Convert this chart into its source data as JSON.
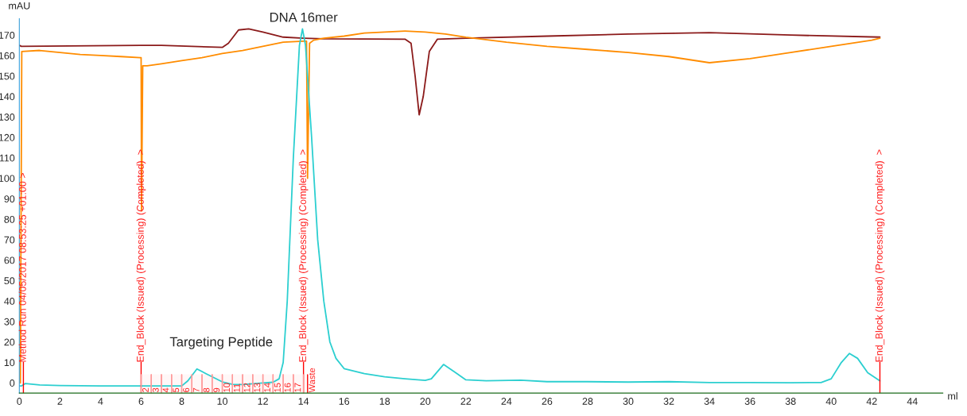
{
  "chart_data": {
    "type": "line",
    "xlabel": "ml",
    "ylabel": "mAU",
    "xlim": [
      0,
      45.5
    ],
    "ylim": [
      -5,
      178
    ],
    "xticks": [
      0,
      2,
      4,
      6,
      8,
      10,
      12,
      14,
      16,
      18,
      20,
      22,
      24,
      26,
      28,
      30,
      32,
      34,
      36,
      38,
      40,
      42,
      44
    ],
    "yticks": [
      0,
      10,
      20,
      30,
      40,
      50,
      60,
      70,
      80,
      90,
      100,
      110,
      120,
      130,
      140,
      150,
      160,
      170
    ],
    "grid": false,
    "marker": "none",
    "line_style": "solid",
    "series": [
      {
        "color": "#8b1a1a",
        "x": [
          0,
          0.1,
          6,
          7,
          10,
          10.3,
          10.8,
          11.3,
          12,
          13,
          14,
          15,
          19,
          19.3,
          19.5,
          19.7,
          19.9,
          20.2,
          20.6,
          22,
          26,
          30,
          34,
          38,
          42.4
        ],
        "values": [
          165,
          164.5,
          165,
          165,
          164,
          166,
          172.5,
          173,
          171.5,
          169,
          168.5,
          168.2,
          168,
          166,
          150,
          131,
          140,
          162,
          168,
          168.5,
          169.5,
          170.5,
          171.2,
          170,
          169
        ]
      },
      {
        "color": "#ff8c00",
        "x": [
          0.05,
          0.12,
          1,
          2,
          3,
          4,
          5,
          5.95,
          6.0,
          6.02,
          6.08,
          6.3,
          7,
          8,
          9,
          10,
          11,
          12,
          13,
          14,
          14.15,
          14.2,
          14.3,
          14.5,
          15,
          16,
          17,
          18,
          19,
          20,
          21,
          22,
          24,
          26,
          28,
          30,
          32,
          34,
          36,
          38,
          40,
          42,
          42.4
        ],
        "values": [
          0,
          162,
          162.5,
          161.5,
          160.5,
          160,
          159.5,
          159,
          159,
          84,
          155,
          155,
          156,
          157.5,
          159,
          161,
          162.5,
          164.5,
          166.5,
          167,
          167,
          100,
          166,
          167.5,
          168.5,
          169.5,
          171,
          171.5,
          172,
          171.5,
          170.5,
          169,
          166.5,
          164.5,
          163,
          161.5,
          159.5,
          156.5,
          158.5,
          161.5,
          164.5,
          167.5,
          168.5
        ]
      },
      {
        "color": "#2ccfd0",
        "x": [
          0,
          0.1,
          0.3,
          1,
          2,
          4,
          6,
          8,
          8.3,
          8.75,
          9.2,
          10,
          10.5,
          11,
          12,
          12.5,
          12.8,
          13.0,
          13.2,
          13.5,
          13.8,
          13.95,
          14.1,
          14.4,
          14.7,
          15.0,
          15.3,
          15.6,
          16,
          17,
          18,
          19,
          20,
          20.3,
          20.9,
          21.5,
          22,
          23,
          24.7,
          26,
          28,
          30,
          32,
          34,
          36,
          38,
          39.5,
          40,
          40.5,
          40.9,
          41.3,
          41.8,
          42.4
        ],
        "values": [
          -1.5,
          -1.5,
          -0.3,
          -1,
          -1.3,
          -1.5,
          -1.5,
          -1.5,
          1,
          6.8,
          4.5,
          0.5,
          -0.7,
          -0.8,
          0,
          0.3,
          2,
          10,
          40,
          110,
          165,
          173,
          165,
          120,
          70,
          40,
          20,
          12,
          7,
          4.5,
          3,
          2,
          1.2,
          2,
          9,
          5,
          1.5,
          1,
          1.3,
          0.6,
          0.6,
          0.4,
          0.6,
          0.2,
          0.2,
          0.1,
          0.2,
          2,
          10,
          14.4,
          12,
          5,
          1
        ]
      }
    ],
    "ref_lines": [
      {
        "axis": "x",
        "value": 0.2,
        "label": "Method Run 04/05/2017 08:53:25 +01:00 >",
        "color": "#ff0000"
      },
      {
        "axis": "x",
        "value": 6.0,
        "label": "End_Block (Issued) (Processing) (Completed)  >",
        "color": "#ff0000"
      },
      {
        "axis": "x",
        "value": 14.0,
        "label": "End_Block (Issued) (Processing) (Completed)  >",
        "color": "#ff0000"
      },
      {
        "axis": "x",
        "value": 42.4,
        "label": "End_Block (Issued) (Processing) (Completed)  >",
        "color": "#ff0000"
      },
      {
        "axis": "x",
        "value": 14.2,
        "label": "Waste",
        "color": "#ff0000"
      }
    ],
    "annotations": [
      {
        "text": "DNA 16mer",
        "x": 14,
        "y": 173
      },
      {
        "text": "Targeting Peptide",
        "x": 8.75,
        "y": 6.8
      }
    ],
    "bands": [
      {
        "axis": "x",
        "from": 6.0,
        "to": 6.5,
        "label": "2",
        "color": "#ff9999"
      },
      {
        "axis": "x",
        "from": 6.5,
        "to": 7.0,
        "label": "3",
        "color": "#ff9999"
      },
      {
        "axis": "x",
        "from": 7.0,
        "to": 7.5,
        "label": "4",
        "color": "#ff9999"
      },
      {
        "axis": "x",
        "from": 7.5,
        "to": 8.0,
        "label": "5",
        "color": "#ff9999"
      },
      {
        "axis": "x",
        "from": 8.0,
        "to": 8.5,
        "label": "6",
        "color": "#ff9999"
      },
      {
        "axis": "x",
        "from": 8.5,
        "to": 9.0,
        "label": "7",
        "color": "#ff9999"
      },
      {
        "axis": "x",
        "from": 9.0,
        "to": 9.5,
        "label": "8",
        "color": "#ff9999"
      },
      {
        "axis": "x",
        "from": 9.5,
        "to": 10.0,
        "label": "9",
        "color": "#ff9999"
      },
      {
        "axis": "x",
        "from": 10.0,
        "to": 10.5,
        "label": "10",
        "color": "#ff9999"
      },
      {
        "axis": "x",
        "from": 10.5,
        "to": 11.0,
        "label": "11",
        "color": "#ff9999"
      },
      {
        "axis": "x",
        "from": 11.0,
        "to": 11.5,
        "label": "12",
        "color": "#ff9999"
      },
      {
        "axis": "x",
        "from": 11.5,
        "to": 12.0,
        "label": "13",
        "color": "#ff9999"
      },
      {
        "axis": "x",
        "from": 12.0,
        "to": 12.5,
        "label": "14",
        "color": "#ff9999"
      },
      {
        "axis": "x",
        "from": 12.5,
        "to": 13.0,
        "label": "15",
        "color": "#ff9999"
      },
      {
        "axis": "x",
        "from": 13.0,
        "to": 13.5,
        "label": "16",
        "color": "#ff9999"
      },
      {
        "axis": "x",
        "from": 13.5,
        "to": 14.0,
        "label": "17",
        "color": "#ff9999"
      }
    ]
  }
}
